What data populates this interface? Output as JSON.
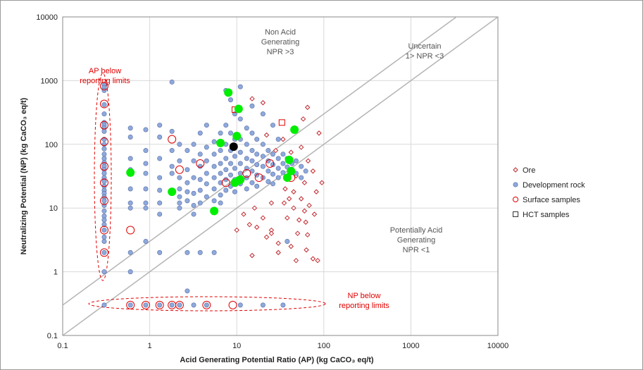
{
  "chart_data": {
    "type": "scatter",
    "scale": "log-log",
    "xlabel": "Acid Generating Potential Ratio (AP)  (kg CaCO₃ eq/t)",
    "ylabel": "Neutralizing Potential (NP) (kg CaCO₃ eq/t)",
    "xlim": [
      0.1,
      10000
    ],
    "ylim": [
      0.1,
      10000
    ],
    "x_ticks": [
      0.1,
      1,
      10,
      100,
      1000,
      10000
    ],
    "y_ticks": [
      0.1,
      1,
      10,
      100,
      1000,
      10000
    ],
    "x_tick_labels": [
      "0.1",
      "1",
      "10",
      "100",
      "1000",
      "10000"
    ],
    "y_tick_labels": [
      "0.1",
      "1",
      "10",
      "100",
      "1000",
      "10000"
    ],
    "grid": true,
    "legend_position": "right",
    "reference_lines": [
      {
        "description": "NPR = 3",
        "slope_ratio": 3
      },
      {
        "description": "NPR = 1",
        "slope_ratio": 1
      }
    ],
    "annotations": [
      {
        "lines": [
          "Non Acid",
          "Generating",
          "NPR >3"
        ],
        "color": "#555555"
      },
      {
        "lines": [
          "Uncertain",
          "1> NPR <3"
        ],
        "color": "#555555"
      },
      {
        "lines": [
          "Potentially Acid",
          "Generating",
          "NPR <1"
        ],
        "color": "#555555"
      },
      {
        "lines": [
          "AP below",
          "reporting limits"
        ],
        "color": "#e00000"
      },
      {
        "lines": [
          "NP below",
          "reporting limits"
        ],
        "color": "#e00000"
      }
    ],
    "series": [
      {
        "name": "Ore",
        "marker": "diamond",
        "color": "#c0272d",
        "points": [
          [
            15,
            520
          ],
          [
            20,
            450
          ],
          [
            58,
            250
          ],
          [
            65,
            380
          ],
          [
            88,
            150
          ],
          [
            22,
            140
          ],
          [
            34,
            120
          ],
          [
            55,
            90
          ],
          [
            28,
            80
          ],
          [
            42,
            75
          ],
          [
            66,
            55
          ],
          [
            75,
            38
          ],
          [
            48,
            32
          ],
          [
            60,
            25
          ],
          [
            95,
            25
          ],
          [
            36,
            20
          ],
          [
            45,
            18
          ],
          [
            82,
            18
          ],
          [
            40,
            14
          ],
          [
            55,
            14
          ],
          [
            25,
            12
          ],
          [
            35,
            12
          ],
          [
            68,
            11
          ],
          [
            16,
            10
          ],
          [
            45,
            10
          ],
          [
            60,
            9
          ],
          [
            78,
            8
          ],
          [
            12,
            8
          ],
          [
            20,
            7
          ],
          [
            38,
            7
          ],
          [
            52,
            6.5
          ],
          [
            62,
            6
          ],
          [
            14,
            5.5
          ],
          [
            17,
            5
          ],
          [
            25,
            4.5
          ],
          [
            10,
            4.5
          ],
          [
            50,
            4
          ],
          [
            65,
            3.8
          ],
          [
            22,
            3.5
          ],
          [
            30,
            2.8
          ],
          [
            42,
            2.5
          ],
          [
            63,
            2.2
          ],
          [
            30,
            2
          ],
          [
            75,
            1.6
          ],
          [
            85,
            1.5
          ],
          [
            25,
            4
          ],
          [
            48,
            1.5
          ],
          [
            15,
            1.8
          ]
        ]
      },
      {
        "name": "Development rock",
        "marker": "circle",
        "color": "#8ea9db",
        "points": [
          [
            0.3,
            850
          ],
          [
            0.3,
            780
          ],
          [
            0.3,
            700
          ],
          [
            0.3,
            420
          ],
          [
            0.3,
            300
          ],
          [
            0.3,
            220
          ],
          [
            0.3,
            200
          ],
          [
            0.3,
            180
          ],
          [
            0.3,
            160
          ],
          [
            0.3,
            120
          ],
          [
            0.3,
            100
          ],
          [
            0.3,
            85
          ],
          [
            0.3,
            70
          ],
          [
            0.3,
            60
          ],
          [
            0.3,
            52
          ],
          [
            0.3,
            45
          ],
          [
            0.3,
            40
          ],
          [
            0.3,
            35
          ],
          [
            0.3,
            30
          ],
          [
            0.3,
            26
          ],
          [
            0.3,
            22
          ],
          [
            0.3,
            19
          ],
          [
            0.3,
            17
          ],
          [
            0.3,
            15
          ],
          [
            0.3,
            13
          ],
          [
            0.3,
            11
          ],
          [
            0.3,
            9
          ],
          [
            0.3,
            7.5
          ],
          [
            0.3,
            6.5
          ],
          [
            0.3,
            5.5
          ],
          [
            0.3,
            4.5
          ],
          [
            0.3,
            3.5
          ],
          [
            0.3,
            3
          ],
          [
            0.3,
            2
          ],
          [
            0.3,
            1
          ],
          [
            0.3,
            0.3
          ],
          [
            0.6,
            180
          ],
          [
            0.6,
            130
          ],
          [
            0.6,
            60
          ],
          [
            0.6,
            40
          ],
          [
            0.6,
            20
          ],
          [
            0.6,
            12
          ],
          [
            0.6,
            10
          ],
          [
            0.6,
            2
          ],
          [
            0.6,
            1
          ],
          [
            0.6,
            0.3
          ],
          [
            0.9,
            170
          ],
          [
            0.9,
            80
          ],
          [
            0.9,
            50
          ],
          [
            0.9,
            35
          ],
          [
            0.9,
            20
          ],
          [
            0.9,
            12
          ],
          [
            0.9,
            10
          ],
          [
            0.9,
            3
          ],
          [
            0.9,
            0.3
          ],
          [
            1.3,
            200
          ],
          [
            1.3,
            130
          ],
          [
            1.3,
            60
          ],
          [
            1.3,
            30
          ],
          [
            1.3,
            19
          ],
          [
            1.3,
            12
          ],
          [
            1.3,
            8
          ],
          [
            1.3,
            2
          ],
          [
            1.3,
            0.3
          ],
          [
            1.8,
            950
          ],
          [
            1.8,
            160
          ],
          [
            1.8,
            80
          ],
          [
            1.8,
            45
          ],
          [
            1.8,
            35
          ],
          [
            1.8,
            17
          ],
          [
            1.8,
            0.3
          ],
          [
            2.2,
            100
          ],
          [
            2.2,
            55
          ],
          [
            2.2,
            30
          ],
          [
            2.2,
            20
          ],
          [
            2.2,
            15
          ],
          [
            2.2,
            12
          ],
          [
            2.2,
            10
          ],
          [
            2.2,
            0.3
          ],
          [
            2.7,
            80
          ],
          [
            2.7,
            40
          ],
          [
            2.7,
            25
          ],
          [
            2.7,
            18
          ],
          [
            2.7,
            13
          ],
          [
            2.7,
            2
          ],
          [
            2.7,
            0.5
          ],
          [
            3.2,
            100
          ],
          [
            3.2,
            55
          ],
          [
            3.2,
            30
          ],
          [
            3.2,
            17
          ],
          [
            3.2,
            11
          ],
          [
            3.2,
            8
          ],
          [
            3.2,
            0.3
          ],
          [
            3.8,
            150
          ],
          [
            3.8,
            70
          ],
          [
            3.8,
            45
          ],
          [
            3.8,
            28
          ],
          [
            3.8,
            19
          ],
          [
            3.8,
            12
          ],
          [
            3.8,
            2
          ],
          [
            4.5,
            200
          ],
          [
            4.5,
            90
          ],
          [
            4.5,
            55
          ],
          [
            4.5,
            35
          ],
          [
            4.5,
            24
          ],
          [
            4.5,
            15
          ],
          [
            4.5,
            0.3
          ],
          [
            5.5,
            110
          ],
          [
            5.5,
            70
          ],
          [
            5.5,
            45
          ],
          [
            5.5,
            30
          ],
          [
            5.5,
            20
          ],
          [
            5.5,
            13
          ],
          [
            5.5,
            2
          ],
          [
            6.5,
            150
          ],
          [
            6.5,
            80
          ],
          [
            6.5,
            50
          ],
          [
            6.5,
            35
          ],
          [
            6.5,
            25
          ],
          [
            6.5,
            16
          ],
          [
            6.5,
            12
          ],
          [
            7.5,
            700
          ],
          [
            7.5,
            200
          ],
          [
            7.5,
            100
          ],
          [
            7.5,
            60
          ],
          [
            7.5,
            40
          ],
          [
            7.5,
            28
          ],
          [
            7.5,
            19
          ],
          [
            8.5,
            500
          ],
          [
            8.5,
            150
          ],
          [
            8.5,
            80
          ],
          [
            8.5,
            50
          ],
          [
            8.5,
            33
          ],
          [
            8.5,
            22
          ],
          [
            9.5,
            300
          ],
          [
            9.5,
            120
          ],
          [
            9.5,
            65
          ],
          [
            9.5,
            42
          ],
          [
            9.5,
            28
          ],
          [
            9.5,
            18
          ],
          [
            11,
            800
          ],
          [
            11,
            250
          ],
          [
            11,
            120
          ],
          [
            11,
            75
          ],
          [
            11,
            50
          ],
          [
            11,
            35
          ],
          [
            11,
            24
          ],
          [
            11,
            0.3
          ],
          [
            13,
            180
          ],
          [
            13,
            100
          ],
          [
            13,
            60
          ],
          [
            13,
            42
          ],
          [
            13,
            30
          ],
          [
            13,
            20
          ],
          [
            15,
            400
          ],
          [
            15,
            150
          ],
          [
            15,
            80
          ],
          [
            15,
            55
          ],
          [
            15,
            38
          ],
          [
            15,
            25
          ],
          [
            17,
            120
          ],
          [
            17,
            70
          ],
          [
            17,
            48
          ],
          [
            17,
            33
          ],
          [
            17,
            22
          ],
          [
            20,
            300
          ],
          [
            20,
            100
          ],
          [
            20,
            65
          ],
          [
            20,
            45
          ],
          [
            20,
            30
          ],
          [
            20,
            0.3
          ],
          [
            23,
            80
          ],
          [
            23,
            55
          ],
          [
            23,
            38
          ],
          [
            23,
            26
          ],
          [
            26,
            200
          ],
          [
            26,
            70
          ],
          [
            26,
            48
          ],
          [
            26,
            34
          ],
          [
            26,
            24
          ],
          [
            30,
            120
          ],
          [
            30,
            60
          ],
          [
            30,
            42
          ],
          [
            30,
            30
          ],
          [
            34,
            70
          ],
          [
            34,
            50
          ],
          [
            34,
            36
          ],
          [
            34,
            0.3
          ],
          [
            38,
            60
          ],
          [
            38,
            44
          ],
          [
            38,
            3
          ],
          [
            43,
            50
          ],
          [
            43,
            38
          ],
          [
            48,
            55
          ],
          [
            48,
            35
          ],
          [
            55,
            45
          ],
          [
            55,
            30
          ],
          [
            62,
            38
          ]
        ]
      },
      {
        "name": "Surface samples",
        "marker": "open-circle",
        "color": "#e00000",
        "points": [
          [
            0.3,
            820
          ],
          [
            0.3,
            430
          ],
          [
            0.3,
            200
          ],
          [
            0.3,
            110
          ],
          [
            0.3,
            45
          ],
          [
            0.3,
            25
          ],
          [
            0.3,
            13
          ],
          [
            0.3,
            4.5
          ],
          [
            0.3,
            2
          ],
          [
            0.6,
            4.5
          ],
          [
            0.6,
            0.3
          ],
          [
            0.9,
            0.3
          ],
          [
            1.3,
            0.3
          ],
          [
            1.8,
            120
          ],
          [
            1.8,
            0.3
          ],
          [
            2.2,
            40
          ],
          [
            2.2,
            0.3
          ],
          [
            3.8,
            50
          ],
          [
            4.5,
            0.3
          ],
          [
            7.5,
            25
          ],
          [
            9,
            0.3
          ],
          [
            13,
            35
          ],
          [
            18,
            30
          ],
          [
            24,
            50
          ],
          [
            42,
            30
          ]
        ]
      },
      {
        "name": "HCT samples",
        "marker": "open-square",
        "color": "#e00000",
        "points": [
          [
            9.5,
            350
          ],
          [
            33,
            220
          ]
        ]
      },
      {
        "marker": "filled-circle",
        "color": "#00ee00",
        "points": [
          [
            0.6,
            36
          ],
          [
            1.8,
            18
          ],
          [
            5.5,
            9
          ],
          [
            6.5,
            105
          ],
          [
            8,
            650
          ],
          [
            10.5,
            360
          ],
          [
            10,
            135
          ],
          [
            9.5,
            25
          ],
          [
            10.5,
            27
          ],
          [
            11,
            28
          ],
          [
            38,
            30
          ],
          [
            40,
            57
          ],
          [
            42,
            38
          ],
          [
            46,
            170
          ]
        ]
      },
      {
        "marker": "filled-circle",
        "color": "#000000",
        "points": [
          [
            9.2,
            92
          ]
        ]
      }
    ]
  }
}
